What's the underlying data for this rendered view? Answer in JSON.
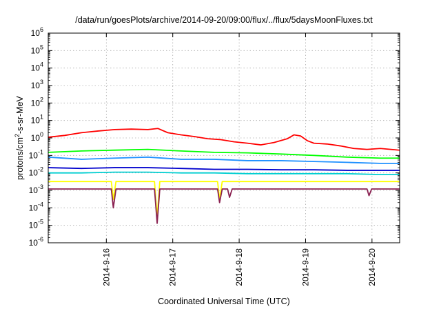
{
  "chart_data": {
    "type": "line",
    "title": "/data/run/goesPlots/archive/2014-09-20/09:00/flux/../flux/5daysMoonFluxes.txt",
    "xlabel": "Coordinated Universal Time (UTC)",
    "ylabel_parts": [
      "protons/cm",
      "2",
      "-s-sr-MeV"
    ],
    "yscale": "log",
    "ylim": [
      1e-06,
      1000000.0
    ],
    "yticks": [
      {
        "base": "10",
        "exp": "-6",
        "value": 1e-06
      },
      {
        "base": "10",
        "exp": "-5",
        "value": 1e-05
      },
      {
        "base": "10",
        "exp": "-4",
        "value": 0.0001
      },
      {
        "base": "10",
        "exp": "-3",
        "value": 0.001
      },
      {
        "base": "10",
        "exp": "-2",
        "value": 0.01
      },
      {
        "base": "10",
        "exp": "-1",
        "value": 0.1
      },
      {
        "base": "10",
        "exp": "0",
        "value": 1
      },
      {
        "base": "10",
        "exp": "1",
        "value": 10
      },
      {
        "base": "10",
        "exp": "2",
        "value": 100
      },
      {
        "base": "10",
        "exp": "3",
        "value": 1000
      },
      {
        "base": "10",
        "exp": "4",
        "value": 10000
      },
      {
        "base": "10",
        "exp": "5",
        "value": 100000
      },
      {
        "base": "10",
        "exp": "6",
        "value": 1000000
      }
    ],
    "xlim": [
      "2014-09-15 03:00",
      "2014-09-20 10:00"
    ],
    "xticks": [
      "2014-9-16",
      "2014-9-17",
      "2014-9-18",
      "2014-9-19",
      "2014-9-20"
    ],
    "grid": true,
    "series": [
      {
        "color": "#ff0000",
        "points": [
          [
            0,
            1.1
          ],
          [
            0.25,
            1.4
          ],
          [
            0.5,
            2.0
          ],
          [
            0.75,
            2.5
          ],
          [
            1.0,
            3.0
          ],
          [
            1.25,
            3.2
          ],
          [
            1.5,
            3.0
          ],
          [
            1.65,
            3.5
          ],
          [
            1.8,
            2.0
          ],
          [
            2.0,
            1.5
          ],
          [
            2.2,
            1.2
          ],
          [
            2.4,
            0.9
          ],
          [
            2.6,
            0.8
          ],
          [
            2.8,
            0.6
          ],
          [
            3.0,
            0.5
          ],
          [
            3.2,
            0.4
          ],
          [
            3.4,
            0.55
          ],
          [
            3.6,
            0.9
          ],
          [
            3.7,
            1.5
          ],
          [
            3.8,
            1.3
          ],
          [
            3.9,
            0.7
          ],
          [
            4.0,
            0.5
          ],
          [
            4.2,
            0.45
          ],
          [
            4.4,
            0.35
          ],
          [
            4.6,
            0.25
          ],
          [
            4.8,
            0.22
          ],
          [
            5.0,
            0.25
          ],
          [
            5.29,
            0.2
          ]
        ]
      },
      {
        "color": "#00ff00",
        "points": [
          [
            0,
            0.15
          ],
          [
            0.5,
            0.18
          ],
          [
            1.0,
            0.2
          ],
          [
            1.5,
            0.22
          ],
          [
            2.0,
            0.18
          ],
          [
            2.5,
            0.15
          ],
          [
            3.0,
            0.14
          ],
          [
            3.5,
            0.12
          ],
          [
            4.0,
            0.1
          ],
          [
            4.5,
            0.08
          ],
          [
            5.0,
            0.07
          ],
          [
            5.29,
            0.07
          ]
        ]
      },
      {
        "color": "#1e90ff",
        "points": [
          [
            0,
            0.08
          ],
          [
            0.5,
            0.06
          ],
          [
            1.0,
            0.07
          ],
          [
            1.5,
            0.08
          ],
          [
            2.0,
            0.06
          ],
          [
            2.5,
            0.06
          ],
          [
            3.0,
            0.05
          ],
          [
            3.5,
            0.05
          ],
          [
            4.0,
            0.045
          ],
          [
            4.5,
            0.04
          ],
          [
            5.0,
            0.035
          ],
          [
            5.29,
            0.035
          ]
        ]
      },
      {
        "color": "#0000cd",
        "points": [
          [
            0,
            0.02
          ],
          [
            0.5,
            0.018
          ],
          [
            1.0,
            0.02
          ],
          [
            1.5,
            0.02
          ],
          [
            2.0,
            0.018
          ],
          [
            2.5,
            0.016
          ],
          [
            3.0,
            0.016
          ],
          [
            3.5,
            0.015
          ],
          [
            4.0,
            0.015
          ],
          [
            4.5,
            0.014
          ],
          [
            5.0,
            0.014
          ],
          [
            5.29,
            0.014
          ]
        ]
      },
      {
        "color": "#00ced1",
        "points": [
          [
            0,
            0.01
          ],
          [
            0.5,
            0.01
          ],
          [
            1.0,
            0.011
          ],
          [
            1.5,
            0.011
          ],
          [
            2.0,
            0.01
          ],
          [
            2.5,
            0.01
          ],
          [
            3.0,
            0.009
          ],
          [
            3.5,
            0.009
          ],
          [
            4.0,
            0.009
          ],
          [
            4.5,
            0.009
          ],
          [
            5.0,
            0.008
          ],
          [
            5.29,
            0.008
          ]
        ]
      },
      {
        "color": "#ffff00",
        "points": [
          [
            0,
            0.0032
          ],
          [
            0.95,
            0.0032
          ],
          [
            0.98,
            0.0003
          ],
          [
            1.02,
            0.0032
          ],
          [
            1.6,
            0.0032
          ],
          [
            1.64,
            3e-05
          ],
          [
            1.68,
            0.0032
          ],
          [
            2.55,
            0.0032
          ],
          [
            2.58,
            0.0003
          ],
          [
            2.62,
            0.0032
          ],
          [
            5.29,
            0.0032
          ]
        ]
      },
      {
        "color": "#8b2252",
        "points": [
          [
            0,
            0.0012
          ],
          [
            0.5,
            0.0012
          ],
          [
            0.95,
            0.0012
          ],
          [
            0.98,
            0.0001
          ],
          [
            1.02,
            0.0012
          ],
          [
            1.6,
            0.0012
          ],
          [
            1.64,
            1.3e-05
          ],
          [
            1.68,
            0.0012
          ],
          [
            2.55,
            0.0012
          ],
          [
            2.58,
            0.0002
          ],
          [
            2.62,
            0.0012
          ],
          [
            2.7,
            0.0012
          ],
          [
            2.73,
            0.0004
          ],
          [
            2.77,
            0.0012
          ],
          [
            4.8,
            0.0012
          ],
          [
            4.83,
            0.0005
          ],
          [
            4.87,
            0.0012
          ],
          [
            5.29,
            0.0012
          ]
        ]
      }
    ]
  }
}
